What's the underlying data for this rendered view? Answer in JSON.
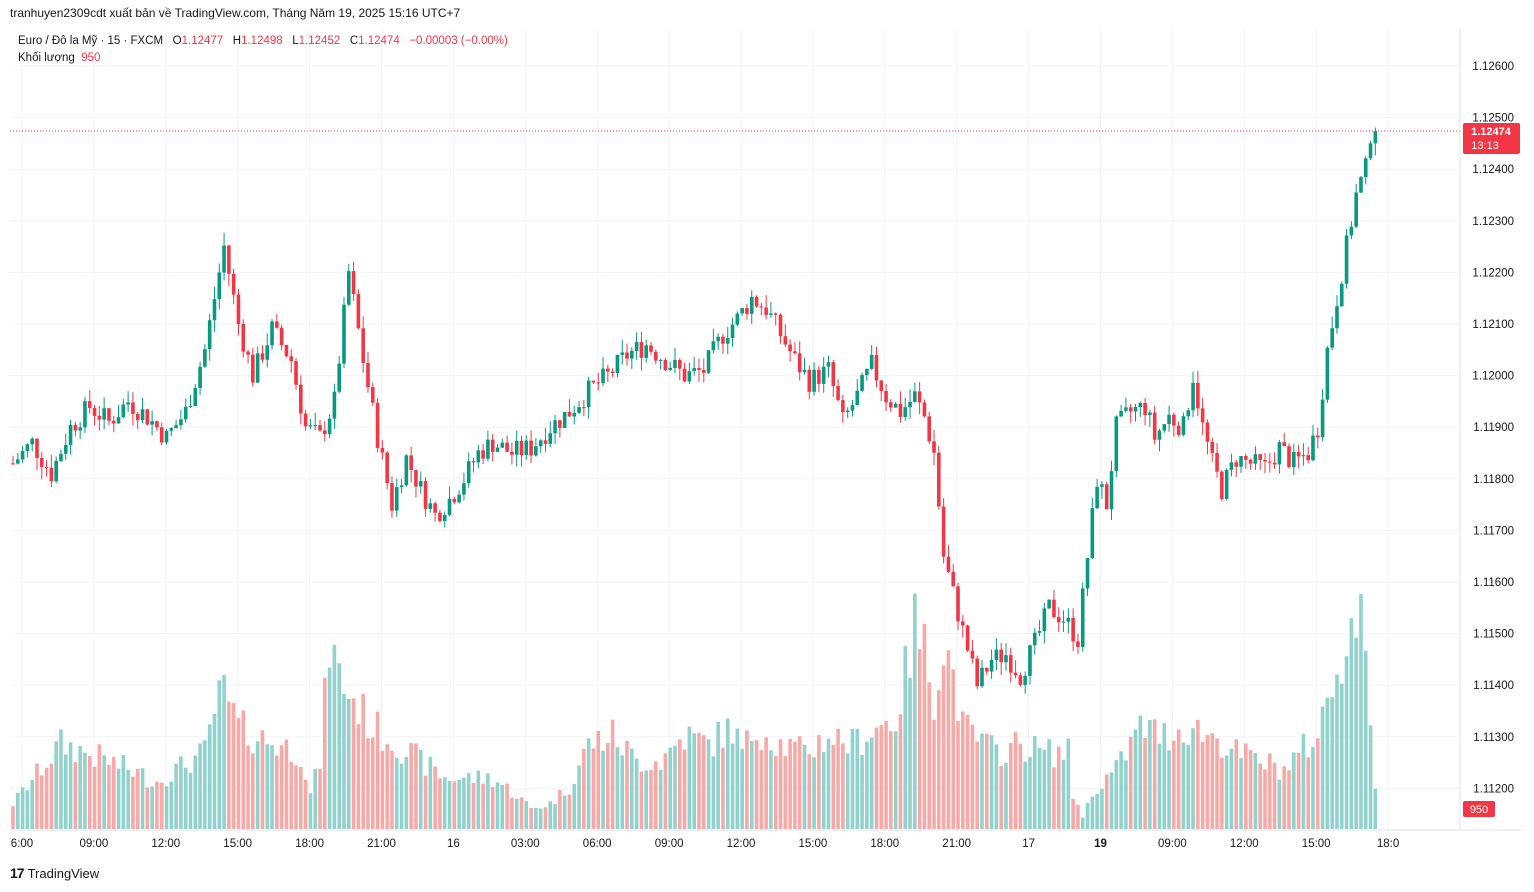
{
  "header": {
    "publish_line": "tranhuyen2309cdt xuất bản về TradingView.com, Tháng Năm 19, 2025 15:16 UTC+7"
  },
  "legend": {
    "symbol": "Euro / Đô la Mỹ · 15 · FXCM",
    "o_label": "O",
    "o_value": "1.12477",
    "h_label": "H",
    "h_value": "1.12498",
    "l_label": "L",
    "l_value": "1.12452",
    "c_label": "C",
    "c_value": "1.12474",
    "change": "−0.00003 (−0.00%)",
    "volume_label": "Khối lượng",
    "volume_value": "950"
  },
  "price_badge": {
    "price": "1.12474",
    "countdown": "13:13"
  },
  "volume_badge": "950",
  "footer": {
    "logo_glyph": "17",
    "brand": "TradingView"
  },
  "colors": {
    "up": "#089981",
    "down": "#f23645",
    "up_volume": "#92d2cc",
    "down_volume": "#f7a9a7",
    "grid": "#f0f3fa"
  },
  "chart_data": {
    "type": "candlestick",
    "interval": "15",
    "ylim": [
      1.1112,
      1.127
    ],
    "y_ticks": [
      "1.12600",
      "1.12500",
      "1.12400",
      "1.12300",
      "1.12200",
      "1.12100",
      "1.12000",
      "1.11900",
      "1.11800",
      "1.11700",
      "1.11600",
      "1.11500",
      "1.11400",
      "1.11300",
      "1.11200"
    ],
    "x_ticks": [
      "6:00",
      "09:00",
      "12:00",
      "15:00",
      "18:00",
      "21:00",
      "16",
      "03:00",
      "06:00",
      "09:00",
      "12:00",
      "15:00",
      "18:00",
      "21:00",
      "17",
      "19",
      "09:00",
      "12:00",
      "15:00",
      "18:0"
    ],
    "last_close": 1.12474,
    "close_path": [
      [
        0,
        1.1183
      ],
      [
        4,
        1.1187
      ],
      [
        8,
        1.1181
      ],
      [
        12,
        1.119
      ],
      [
        16,
        1.1194
      ],
      [
        20,
        1.1191
      ],
      [
        24,
        1.1195
      ],
      [
        28,
        1.1192
      ],
      [
        32,
        1.1188
      ],
      [
        36,
        1.1193
      ],
      [
        40,
        1.1205
      ],
      [
        44,
        1.1225
      ],
      [
        47,
        1.121
      ],
      [
        50,
        1.12
      ],
      [
        54,
        1.1209
      ],
      [
        58,
        1.1203
      ],
      [
        61,
        1.119
      ],
      [
        64,
        1.1188
      ],
      [
        67,
        1.1195
      ],
      [
        70,
        1.122
      ],
      [
        73,
        1.1203
      ],
      [
        76,
        1.1188
      ],
      [
        79,
        1.1175
      ],
      [
        82,
        1.1184
      ],
      [
        85,
        1.1178
      ],
      [
        88,
        1.1173
      ],
      [
        91,
        1.1176
      ],
      [
        94,
        1.118
      ],
      [
        97,
        1.1185
      ],
      [
        100,
        1.1187
      ],
      [
        104,
        1.1185
      ],
      [
        108,
        1.1186
      ],
      [
        112,
        1.119
      ],
      [
        116,
        1.1193
      ],
      [
        120,
        1.1197
      ],
      [
        124,
        1.12
      ],
      [
        128,
        1.1204
      ],
      [
        132,
        1.1206
      ],
      [
        136,
        1.1203
      ],
      [
        140,
        1.12
      ],
      [
        144,
        1.1201
      ],
      [
        148,
        1.1208
      ],
      [
        151,
        1.1211
      ],
      [
        154,
        1.1215
      ],
      [
        157,
        1.1213
      ],
      [
        160,
        1.1208
      ],
      [
        163,
        1.1203
      ],
      [
        166,
        1.1199
      ],
      [
        170,
        1.1201
      ],
      [
        173,
        1.1191
      ],
      [
        176,
        1.1196
      ],
      [
        179,
        1.1202
      ],
      [
        182,
        1.1196
      ],
      [
        185,
        1.1193
      ],
      [
        188,
        1.1196
      ],
      [
        190,
        1.1192
      ],
      [
        192,
        1.1185
      ],
      [
        194,
        1.1165
      ],
      [
        197,
        1.1154
      ],
      [
        199,
        1.1147
      ],
      [
        201,
        1.114
      ],
      [
        204,
        1.1145
      ],
      [
        207,
        1.1146
      ],
      [
        210,
        1.1142
      ],
      [
        213,
        1.1148
      ],
      [
        216,
        1.1155
      ],
      [
        219,
        1.1153
      ],
      [
        222,
        1.1149
      ],
      [
        224,
        1.1165
      ],
      [
        226,
        1.118
      ],
      [
        228,
        1.1175
      ],
      [
        230,
        1.119
      ],
      [
        233,
        1.1193
      ],
      [
        236,
        1.1194
      ],
      [
        238,
        1.1188
      ],
      [
        241,
        1.1192
      ],
      [
        244,
        1.119
      ],
      [
        246,
        1.12
      ],
      [
        248,
        1.119
      ],
      [
        250,
        1.1183
      ],
      [
        252,
        1.1178
      ],
      [
        255,
        1.1184
      ],
      [
        258,
        1.1183
      ],
      [
        261,
        1.1182
      ],
      [
        264,
        1.1186
      ],
      [
        267,
        1.1183
      ],
      [
        270,
        1.1185
      ],
      [
        272,
        1.119
      ],
      [
        274,
        1.1205
      ],
      [
        276,
        1.1215
      ],
      [
        278,
        1.1225
      ],
      [
        280,
        1.1235
      ],
      [
        282,
        1.124
      ],
      [
        283,
        1.1247
      ]
    ],
    "volume_path": [
      [
        0,
        15
      ],
      [
        10,
        50
      ],
      [
        20,
        40
      ],
      [
        30,
        28
      ],
      [
        40,
        45
      ],
      [
        42,
        70
      ],
      [
        44,
        80
      ],
      [
        47,
        60
      ],
      [
        50,
        55
      ],
      [
        60,
        45
      ],
      [
        62,
        20
      ],
      [
        64,
        40
      ],
      [
        66,
        110
      ],
      [
        68,
        90
      ],
      [
        70,
        80
      ],
      [
        75,
        60
      ],
      [
        80,
        50
      ],
      [
        85,
        40
      ],
      [
        90,
        30
      ],
      [
        100,
        30
      ],
      [
        105,
        20
      ],
      [
        108,
        12
      ],
      [
        112,
        15
      ],
      [
        116,
        25
      ],
      [
        120,
        50
      ],
      [
        125,
        55
      ],
      [
        130,
        40
      ],
      [
        135,
        40
      ],
      [
        140,
        55
      ],
      [
        145,
        50
      ],
      [
        150,
        60
      ],
      [
        152,
        45
      ],
      [
        155,
        60
      ],
      [
        160,
        50
      ],
      [
        165,
        45
      ],
      [
        170,
        55
      ],
      [
        175,
        50
      ],
      [
        180,
        60
      ],
      [
        184,
        65
      ],
      [
        186,
        90
      ],
      [
        188,
        120
      ],
      [
        190,
        105
      ],
      [
        192,
        80
      ],
      [
        194,
        110
      ],
      [
        196,
        90
      ],
      [
        198,
        60
      ],
      [
        200,
        55
      ],
      [
        205,
        45
      ],
      [
        210,
        50
      ],
      [
        215,
        45
      ],
      [
        220,
        45
      ],
      [
        221,
        20
      ],
      [
        223,
        8
      ],
      [
        226,
        25
      ],
      [
        230,
        35
      ],
      [
        235,
        60
      ],
      [
        240,
        55
      ],
      [
        245,
        60
      ],
      [
        250,
        55
      ],
      [
        255,
        45
      ],
      [
        260,
        40
      ],
      [
        265,
        35
      ],
      [
        270,
        50
      ],
      [
        272,
        55
      ],
      [
        274,
        75
      ],
      [
        276,
        95
      ],
      [
        278,
        115
      ],
      [
        280,
        120
      ],
      [
        282,
        120
      ],
      [
        284,
        20
      ]
    ]
  }
}
